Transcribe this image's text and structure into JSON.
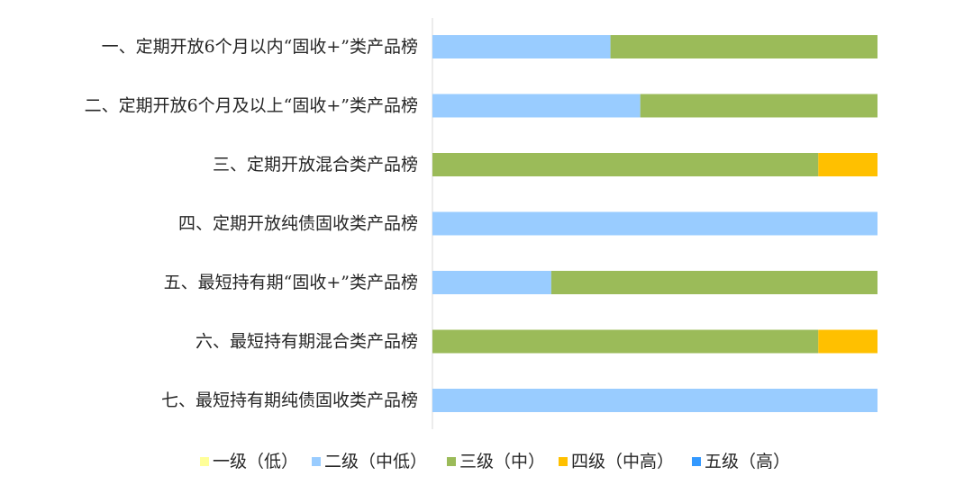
{
  "chart_data": {
    "type": "bar",
    "orientation": "horizontal",
    "stacked": "percent",
    "categories": [
      "一、定期开放6个月以内“固收+”类产品榜",
      "二、定期开放6个月及以上“固收+”类产品榜",
      "三、定期开放混合类产品榜",
      "四、定期开放纯债固收类产品榜",
      "五、最短持有期“固收+”类产品榜",
      "六、最短持有期混合类产品榜",
      "七、最短持有期纯债固收类产品榜"
    ],
    "series": [
      {
        "name": "一级（低）",
        "color": "#FFFF99",
        "values": [
          0,
          0,
          0,
          0,
          0,
          0,
          0
        ]
      },
      {
        "name": "二级（中低）",
        "color": "#99CCFF",
        "values": [
          40,
          46.7,
          0,
          100,
          26.7,
          0,
          100
        ]
      },
      {
        "name": "三级（中）",
        "color": "#9BBB59",
        "values": [
          60,
          53.3,
          86.7,
          0,
          73.3,
          86.7,
          0
        ]
      },
      {
        "name": "四级（中高）",
        "color": "#FFC000",
        "values": [
          0,
          0,
          13.3,
          0,
          0,
          13.3,
          0
        ]
      },
      {
        "name": "五级（高）",
        "color": "#3399FF",
        "values": [
          0,
          0,
          0,
          0,
          0,
          0,
          0
        ]
      }
    ],
    "xlim": [
      0,
      100
    ],
    "grid": false,
    "legend_position": "bottom"
  }
}
